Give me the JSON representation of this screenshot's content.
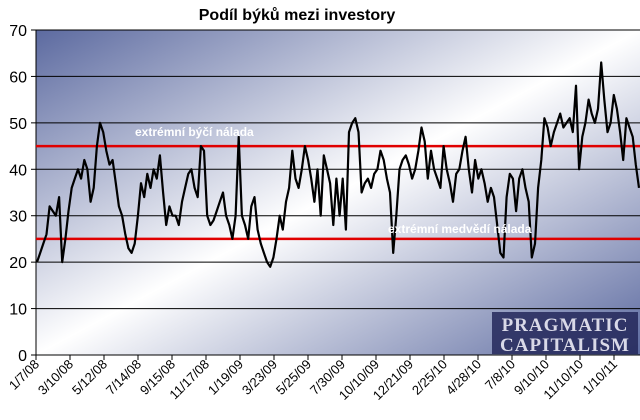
{
  "chart_data": {
    "type": "line",
    "title": "Podíl býků mezi investory",
    "xlabel": "",
    "ylabel": "",
    "ylim": [
      0,
      70
    ],
    "yticks": [
      0,
      10,
      20,
      30,
      40,
      50,
      60,
      70
    ],
    "x_tick_labels": [
      "1/7/08",
      "3/10/08",
      "5/12/08",
      "7/14/08",
      "9/15/08",
      "11/17/08",
      "1/19/09",
      "3/23/09",
      "5/25/09",
      "7/30/09",
      "10/10/09",
      "12/21/09",
      "2/25/10",
      "4/28/10",
      "7/8/10",
      "9/10/10",
      "11/10/10",
      "1/10/11"
    ],
    "grid": true,
    "series": [
      {
        "values": [
          20,
          22,
          24,
          26,
          32,
          31,
          30,
          34,
          20,
          25,
          31,
          36,
          38,
          40,
          38,
          42,
          40,
          33,
          36,
          45,
          50,
          48,
          44,
          41,
          42,
          37,
          32,
          30,
          26,
          23,
          22,
          24,
          30,
          37,
          34,
          39,
          36,
          40,
          38,
          43,
          35,
          28,
          32,
          30,
          30,
          28,
          33,
          36,
          39,
          40,
          36,
          34,
          45,
          44,
          30,
          28,
          29,
          31,
          33,
          35,
          30,
          28,
          25,
          30,
          47,
          30,
          28,
          25,
          32,
          34,
          27,
          24,
          22,
          20,
          19,
          21,
          25,
          30,
          27,
          33,
          36,
          44,
          38,
          36,
          40,
          45,
          42,
          38,
          33,
          40,
          30,
          43,
          40,
          37,
          28,
          38,
          30,
          38,
          27,
          48,
          50,
          51,
          48,
          35,
          37,
          38,
          36,
          39,
          40,
          44,
          42,
          38,
          35,
          22,
          30,
          40,
          42,
          43,
          41,
          38,
          40,
          44,
          49,
          46,
          38,
          44,
          40,
          38,
          36,
          45,
          40,
          37,
          33,
          39,
          40,
          44,
          47,
          40,
          35,
          42,
          38,
          40,
          37,
          33,
          36,
          34,
          28,
          22,
          21,
          34,
          39,
          38,
          31,
          38,
          40,
          36,
          33,
          21,
          24,
          36,
          42,
          51,
          49,
          45,
          48,
          50,
          52,
          49,
          50,
          51,
          48,
          58,
          40,
          47,
          50,
          55,
          52,
          50,
          53,
          63,
          55,
          48,
          50,
          56,
          53,
          48,
          42,
          51,
          49,
          47,
          41,
          36
        ],
        "color": "#000000"
      }
    ],
    "reference_lines": [
      {
        "y": 45,
        "color": "#e00000",
        "label": "extrémní býčí nálada"
      },
      {
        "y": 25,
        "color": "#e00000",
        "label": "extrémní medvědí nálada"
      }
    ],
    "watermark": [
      "PRAGMATIC",
      "CAPITALISM"
    ],
    "colors": {
      "plot_bg": "#2e3868",
      "plot_bg_edge": "#5c6aa0",
      "grid": "#000000",
      "series": "#000000",
      "reference": "#e00000"
    }
  }
}
